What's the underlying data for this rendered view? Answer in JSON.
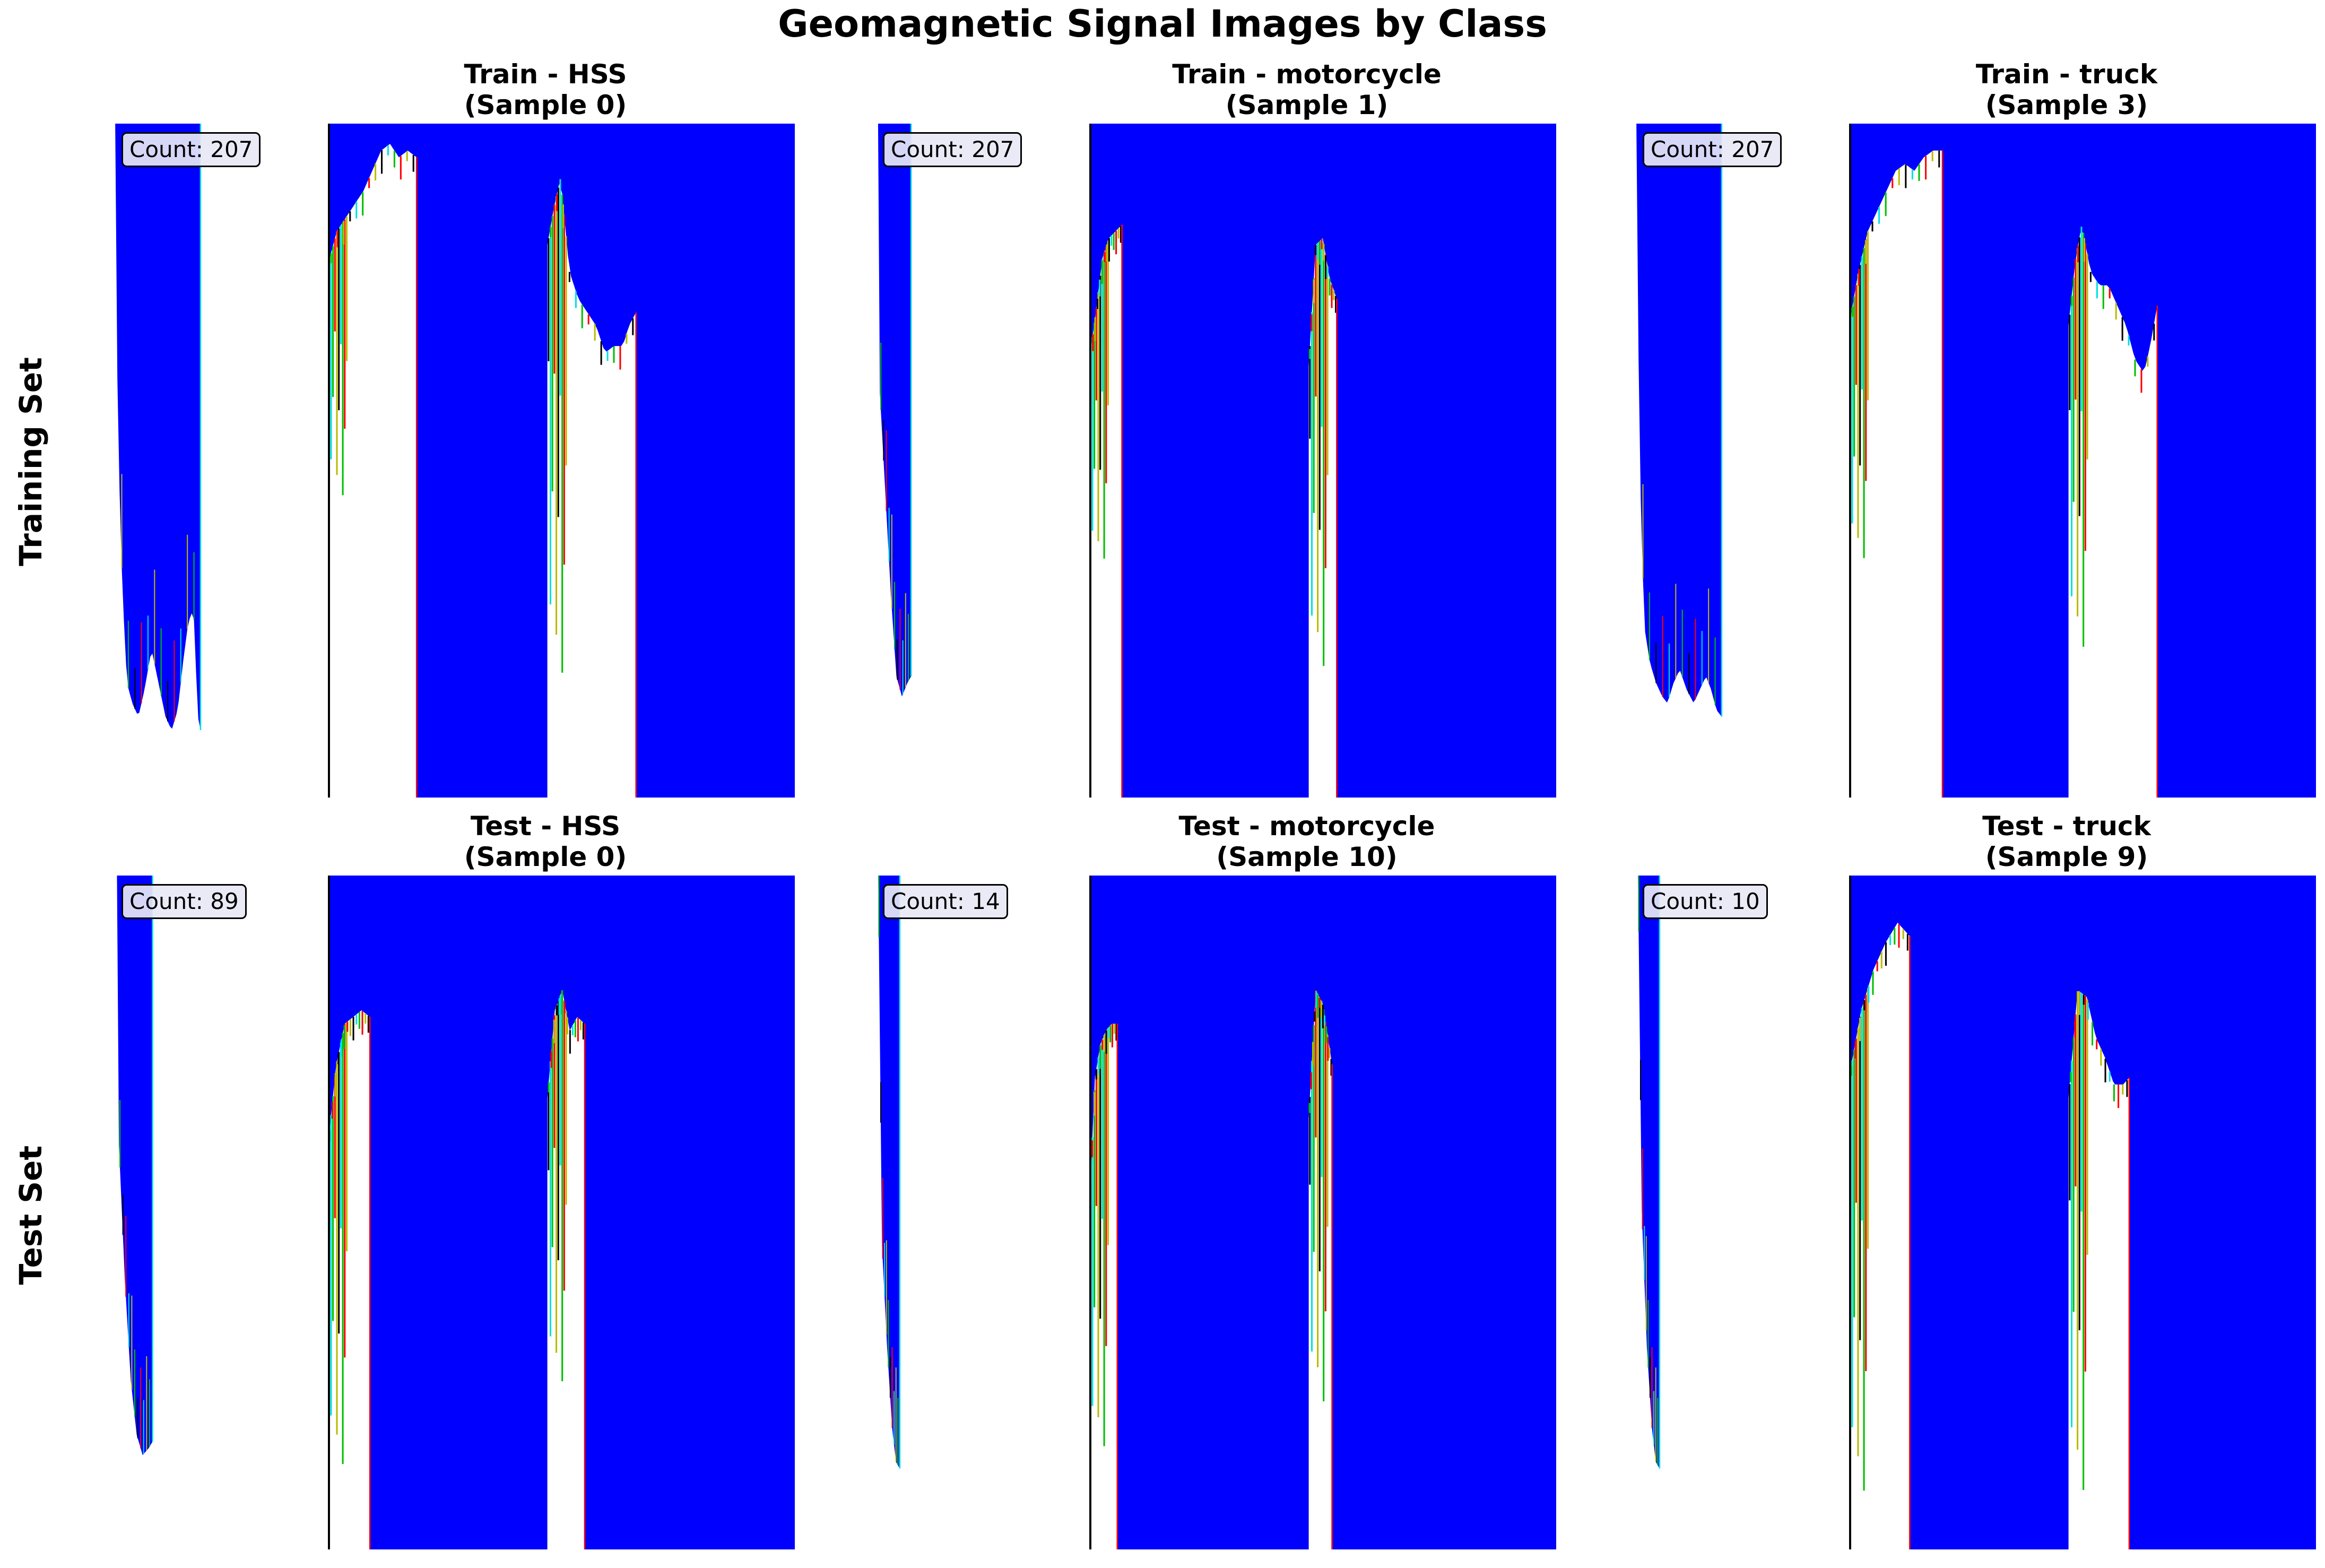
{
  "figure": {
    "title": "Geomagnetic Signal Images by Class",
    "row_labels": [
      "Training Set",
      "Test Set"
    ]
  },
  "colors": {
    "background_fill": "#0000ff",
    "signal_fill": "#ffffff",
    "trace_colors": [
      "#000000",
      "#00e0e0",
      "#00c000",
      "#ff0000",
      "#bbbb00"
    ]
  },
  "chart_data": [
    {
      "type": "heatmap",
      "row": "Training Set",
      "class": "HSS",
      "title": "Train - HSS\n(Sample 0)",
      "count_label": "Count: 207",
      "axis": "off",
      "count_strip": {
        "width_fraction": 0.31,
        "profile": [
          [
            0,
            0
          ],
          [
            0.04,
            0
          ],
          [
            0.05,
            0.38
          ],
          [
            0.08,
            0.58
          ],
          [
            0.11,
            0.7
          ],
          [
            0.16,
            0.83
          ],
          [
            0.22,
            0.86
          ],
          [
            0.29,
            0.88
          ],
          [
            0.36,
            0.84
          ],
          [
            0.44,
            0.78
          ],
          [
            0.52,
            0.83
          ],
          [
            0.6,
            0.88
          ],
          [
            0.67,
            0.9
          ],
          [
            0.74,
            0.87
          ],
          [
            0.8,
            0.8
          ],
          [
            0.86,
            0.74
          ],
          [
            0.92,
            0.72
          ],
          [
            0.97,
            0.88
          ],
          [
            1,
            0.9
          ]
        ]
      },
      "main": {
        "blocks": [
          {
            "start": 0,
            "end": 0.19,
            "profile": [
              [
                0,
                0.21
              ],
              [
                0.1,
                0.16
              ],
              [
                0.2,
                0.14
              ],
              [
                0.3,
                0.12
              ],
              [
                0.4,
                0.1
              ],
              [
                0.5,
                0.07
              ],
              [
                0.6,
                0.04
              ],
              [
                0.7,
                0.03
              ],
              [
                0.8,
                0.05
              ],
              [
                0.9,
                0.04
              ],
              [
                1,
                0.05
              ]
            ],
            "drop": 0.6
          },
          {
            "start": 0.47,
            "end": 0.66,
            "profile": [
              [
                0,
                0.18
              ],
              [
                0.08,
                0.12
              ],
              [
                0.15,
                0.08
              ],
              [
                0.25,
                0.22
              ],
              [
                0.35,
                0.26
              ],
              [
                0.45,
                0.28
              ],
              [
                0.55,
                0.3
              ],
              [
                0.65,
                0.34
              ],
              [
                0.75,
                0.33
              ],
              [
                0.85,
                0.33
              ],
              [
                0.92,
                0.3
              ],
              [
                1,
                0.28
              ]
            ],
            "drop": 0.9
          }
        ]
      }
    },
    {
      "type": "heatmap",
      "row": "Training Set",
      "class": "motorcycle",
      "title": "Train - motorcycle\n(Sample 1)",
      "count_label": "Count: 207",
      "axis": "off",
      "count_strip": {
        "width_fraction": 0.13,
        "profile": [
          [
            0,
            0
          ],
          [
            0.1,
            0
          ],
          [
            0.15,
            0.4
          ],
          [
            0.3,
            0.55
          ],
          [
            0.45,
            0.7
          ],
          [
            0.6,
            0.82
          ],
          [
            0.75,
            0.85
          ],
          [
            0.9,
            0.83
          ],
          [
            1,
            0.82
          ]
        ]
      },
      "main": {
        "blocks": [
          {
            "start": 0,
            "end": 0.07,
            "profile": [
              [
                0,
                0.35
              ],
              [
                0.2,
                0.28
              ],
              [
                0.4,
                0.2
              ],
              [
                0.6,
                0.17
              ],
              [
                0.8,
                0.16
              ],
              [
                1,
                0.15
              ]
            ],
            "drop": 0.7
          },
          {
            "start": 0.47,
            "end": 0.53,
            "profile": [
              [
                0,
                0.36
              ],
              [
                0.25,
                0.18
              ],
              [
                0.5,
                0.17
              ],
              [
                0.75,
                0.23
              ],
              [
                1,
                0.26
              ]
            ],
            "drop": 0.88
          }
        ]
      }
    },
    {
      "type": "heatmap",
      "row": "Training Set",
      "class": "truck",
      "title": "Train - truck\n(Sample 3)",
      "count_label": "Count: 207",
      "axis": "off",
      "count_strip": {
        "width_fraction": 0.5,
        "profile": [
          [
            0,
            0
          ],
          [
            0.03,
            0
          ],
          [
            0.05,
            0.35
          ],
          [
            0.08,
            0.6
          ],
          [
            0.12,
            0.75
          ],
          [
            0.18,
            0.8
          ],
          [
            0.25,
            0.83
          ],
          [
            0.32,
            0.85
          ],
          [
            0.38,
            0.86
          ],
          [
            0.45,
            0.83
          ],
          [
            0.52,
            0.81
          ],
          [
            0.6,
            0.84
          ],
          [
            0.68,
            0.86
          ],
          [
            0.75,
            0.84
          ],
          [
            0.82,
            0.82
          ],
          [
            0.88,
            0.84
          ],
          [
            0.94,
            0.87
          ],
          [
            1,
            0.88
          ]
        ]
      },
      "main": {
        "blocks": [
          {
            "start": 0,
            "end": 0.2,
            "profile": [
              [
                0,
                0.3
              ],
              [
                0.1,
                0.22
              ],
              [
                0.2,
                0.16
              ],
              [
                0.3,
                0.13
              ],
              [
                0.4,
                0.1
              ],
              [
                0.5,
                0.07
              ],
              [
                0.6,
                0.06
              ],
              [
                0.7,
                0.07
              ],
              [
                0.8,
                0.05
              ],
              [
                0.9,
                0.04
              ],
              [
                1,
                0.04
              ]
            ],
            "drop": 0.7
          },
          {
            "start": 0.47,
            "end": 0.66,
            "profile": [
              [
                0,
                0.3
              ],
              [
                0.08,
                0.2
              ],
              [
                0.15,
                0.15
              ],
              [
                0.25,
                0.22
              ],
              [
                0.35,
                0.24
              ],
              [
                0.45,
                0.24
              ],
              [
                0.55,
                0.27
              ],
              [
                0.65,
                0.3
              ],
              [
                0.75,
                0.35
              ],
              [
                0.85,
                0.37
              ],
              [
                0.92,
                0.33
              ],
              [
                1,
                0.27
              ]
            ],
            "drop": 0.85
          }
        ]
      }
    },
    {
      "type": "heatmap",
      "row": "Test Set",
      "class": "HSS",
      "title": "Test - HSS\n(Sample 0)",
      "count_label": "Count: 89",
      "axis": "off",
      "count_strip": {
        "width_fraction": 0.14,
        "profile": [
          [
            0,
            0
          ],
          [
            0.1,
            0
          ],
          [
            0.15,
            0.4
          ],
          [
            0.3,
            0.6
          ],
          [
            0.45,
            0.75
          ],
          [
            0.6,
            0.83
          ],
          [
            0.75,
            0.86
          ],
          [
            0.9,
            0.85
          ],
          [
            1,
            0.84
          ]
        ]
      },
      "main": {
        "blocks": [
          {
            "start": 0,
            "end": 0.09,
            "profile": [
              [
                0,
                0.4
              ],
              [
                0.2,
                0.28
              ],
              [
                0.4,
                0.22
              ],
              [
                0.6,
                0.21
              ],
              [
                0.8,
                0.2
              ],
              [
                1,
                0.21
              ]
            ],
            "drop": 0.95
          },
          {
            "start": 0.47,
            "end": 0.55,
            "profile": [
              [
                0,
                0.33
              ],
              [
                0.2,
                0.2
              ],
              [
                0.4,
                0.17
              ],
              [
                0.6,
                0.23
              ],
              [
                0.8,
                0.21
              ],
              [
                1,
                0.22
              ]
            ],
            "drop": 0.82
          }
        ]
      }
    },
    {
      "type": "heatmap",
      "row": "Test Set",
      "class": "motorcycle",
      "title": "Test - motorcycle\n(Sample 10)",
      "count_label": "Count: 14",
      "axis": "off",
      "count_strip": {
        "width_fraction": 0.09,
        "profile": [
          [
            0,
            0
          ],
          [
            0.15,
            0
          ],
          [
            0.3,
            0.55
          ],
          [
            0.5,
            0.7
          ],
          [
            0.7,
            0.82
          ],
          [
            0.85,
            0.87
          ],
          [
            1,
            0.88
          ]
        ]
      },
      "main": {
        "blocks": [
          {
            "start": 0,
            "end": 0.06,
            "profile": [
              [
                0,
                0.5
              ],
              [
                0.2,
                0.3
              ],
              [
                0.4,
                0.25
              ],
              [
                0.6,
                0.23
              ],
              [
                0.8,
                0.22
              ],
              [
                1,
                0.22
              ]
            ],
            "drop": 0.92
          },
          {
            "start": 0.47,
            "end": 0.52,
            "profile": [
              [
                0,
                0.36
              ],
              [
                0.3,
                0.17
              ],
              [
                0.6,
                0.19
              ],
              [
                1,
                0.28
              ]
            ],
            "drop": 0.85
          }
        ]
      }
    },
    {
      "type": "heatmap",
      "row": "Test Set",
      "class": "truck",
      "title": "Test - truck\n(Sample 9)",
      "count_label": "Count: 10",
      "axis": "off",
      "count_strip": {
        "width_fraction": 0.09,
        "profile": [
          [
            0,
            0
          ],
          [
            0.15,
            0
          ],
          [
            0.3,
            0.5
          ],
          [
            0.5,
            0.7
          ],
          [
            0.7,
            0.82
          ],
          [
            0.85,
            0.87
          ],
          [
            1,
            0.88
          ]
        ]
      },
      "main": {
        "blocks": [
          {
            "start": 0,
            "end": 0.13,
            "profile": [
              [
                0,
                0.3
              ],
              [
                0.2,
                0.2
              ],
              [
                0.4,
                0.14
              ],
              [
                0.6,
                0.1
              ],
              [
                0.8,
                0.07
              ],
              [
                1,
                0.09
              ]
            ],
            "drop": 1.0
          },
          {
            "start": 0.47,
            "end": 0.6,
            "profile": [
              [
                0,
                0.33
              ],
              [
                0.15,
                0.17
              ],
              [
                0.3,
                0.18
              ],
              [
                0.45,
                0.24
              ],
              [
                0.6,
                0.27
              ],
              [
                0.75,
                0.31
              ],
              [
                0.9,
                0.31
              ],
              [
                1,
                0.3
              ]
            ],
            "drop": 1.0
          }
        ]
      }
    }
  ]
}
